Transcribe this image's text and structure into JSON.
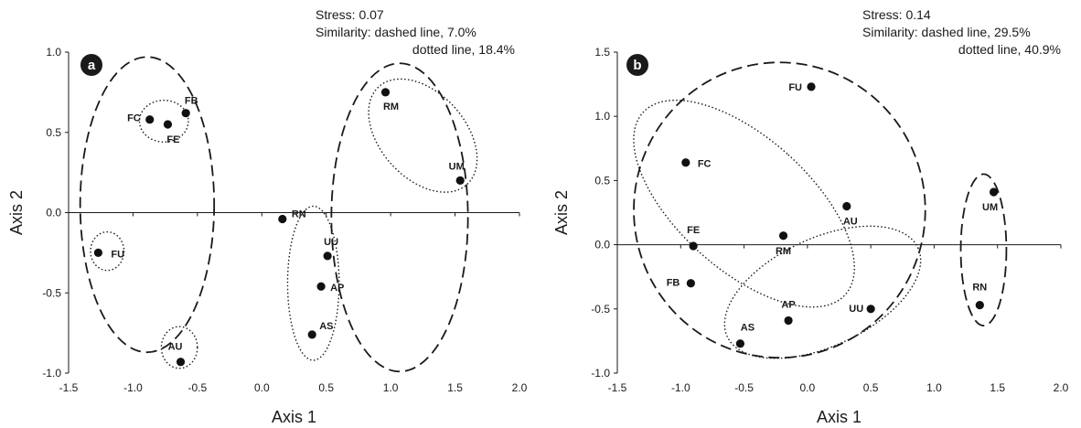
{
  "chart_data": [
    {
      "type": "scatter",
      "panel": "a",
      "xlabel": "Axis 1",
      "ylabel": "Axis 2",
      "xlim": [
        -1.5,
        2.0
      ],
      "ylim": [
        -1.0,
        1.0
      ],
      "xticks": [
        "-1.5",
        "-1.0",
        "-0.5",
        "0.0",
        "0.5",
        "1.0",
        "1.5",
        "2.0"
      ],
      "yticks": [
        "-1.0",
        "-0.5",
        "0.0",
        "0.5",
        "1.0"
      ],
      "grid": false,
      "annotations": {
        "stress": "Stress: 0.07",
        "similarity": "Similarity: dashed line, 7.0%",
        "dotted": "dotted line, 18.4%"
      },
      "points": [
        {
          "label": "FC",
          "x": -0.87,
          "y": 0.58
        },
        {
          "label": "FE",
          "x": -0.73,
          "y": 0.55
        },
        {
          "label": "FB",
          "x": -0.59,
          "y": 0.62
        },
        {
          "label": "FU",
          "x": -1.27,
          "y": -0.25
        },
        {
          "label": "AU",
          "x": -0.63,
          "y": -0.93
        },
        {
          "label": "RN",
          "x": 0.16,
          "y": -0.04
        },
        {
          "label": "UU",
          "x": 0.51,
          "y": -0.27
        },
        {
          "label": "AP",
          "x": 0.46,
          "y": -0.46
        },
        {
          "label": "AS",
          "x": 0.39,
          "y": -0.76
        },
        {
          "label": "RM",
          "x": 0.96,
          "y": 0.75
        },
        {
          "label": "UM",
          "x": 1.54,
          "y": 0.2
        }
      ],
      "groups": {
        "dashed": [
          [
            "FC",
            "FE",
            "FB",
            "FU",
            "AU"
          ],
          [
            "RN",
            "UU",
            "AP",
            "AS",
            "RM",
            "UM"
          ]
        ],
        "dotted": [
          [
            "FC",
            "FE",
            "FB"
          ],
          [
            "FU"
          ],
          [
            "AU"
          ],
          [
            "RN",
            "UU",
            "AP",
            "AS"
          ],
          [
            "RM",
            "UM"
          ]
        ]
      }
    },
    {
      "type": "scatter",
      "panel": "b",
      "xlabel": "Axis 1",
      "ylabel": "Axis 2",
      "xlim": [
        -1.5,
        2.0
      ],
      "ylim": [
        -1.0,
        1.5
      ],
      "xticks": [
        "-1.5",
        "-1.0",
        "-0.5",
        "0.0",
        "0.5",
        "1.0",
        "1.5",
        "2.0"
      ],
      "yticks": [
        "-1.0",
        "-0.5",
        "0.0",
        "0.5",
        "1.0",
        "1.5"
      ],
      "grid": false,
      "annotations": {
        "stress": "Stress: 0.14",
        "similarity": "Similarity: dashed line, 29.5%",
        "dotted": "dotted line, 40.9%"
      },
      "points": [
        {
          "label": "FU",
          "x": 0.03,
          "y": 1.23
        },
        {
          "label": "FC",
          "x": -0.96,
          "y": 0.64
        },
        {
          "label": "FE",
          "x": -0.9,
          "y": -0.01
        },
        {
          "label": "FB",
          "x": -0.92,
          "y": -0.3
        },
        {
          "label": "AU",
          "x": 0.31,
          "y": 0.3
        },
        {
          "label": "RM",
          "x": -0.19,
          "y": 0.07
        },
        {
          "label": "AP",
          "x": -0.15,
          "y": -0.59
        },
        {
          "label": "AS",
          "x": -0.53,
          "y": -0.77
        },
        {
          "label": "UU",
          "x": 0.5,
          "y": -0.5
        },
        {
          "label": "UM",
          "x": 1.47,
          "y": 0.41
        },
        {
          "label": "RN",
          "x": 1.36,
          "y": -0.47
        }
      ],
      "groups": {
        "dashed": [
          [
            "FU",
            "FC",
            "FE",
            "FB",
            "AU",
            "RM",
            "AP",
            "AS",
            "UU"
          ],
          [
            "UM",
            "RN"
          ]
        ],
        "dotted": [
          [
            "FU",
            "FC",
            "FE",
            "FB"
          ],
          [
            "AU",
            "RM",
            "AP",
            "AS",
            "UU"
          ]
        ]
      }
    }
  ]
}
